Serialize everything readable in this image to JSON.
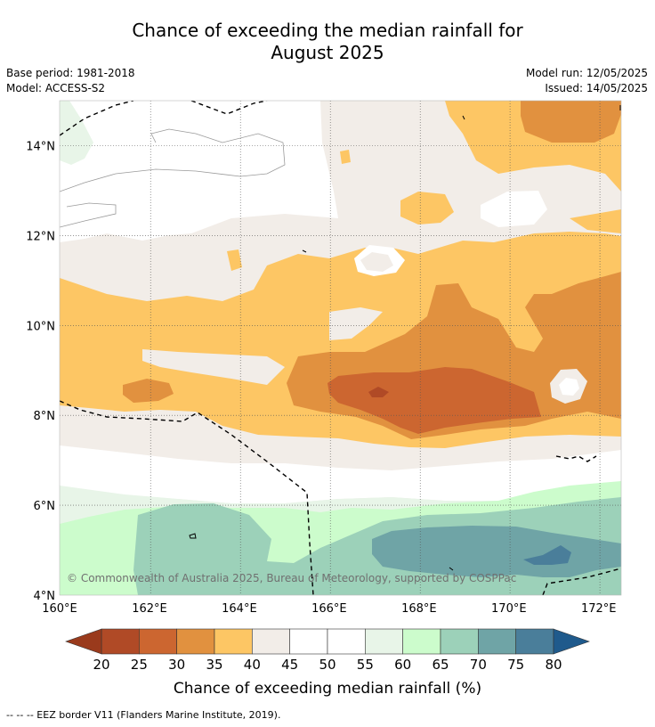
{
  "title_line1": "Chance of exceeding the median rainfall for",
  "title_line2": "August 2025",
  "meta_left": {
    "base_period": "Base period: 1981-2018",
    "model": "Model: ACCESS-S2"
  },
  "meta_right": {
    "model_run": "Model run: 12/05/2025",
    "issued": "Issued: 14/05/2025"
  },
  "map": {
    "lon_range": [
      160,
      172.5
    ],
    "lat_range": [
      4,
      15
    ],
    "lon_ticks": [
      "160°E",
      "162°E",
      "164°E",
      "166°E",
      "168°E",
      "170°E",
      "172°E"
    ],
    "lat_ticks": [
      "4°N",
      "6°N",
      "8°N",
      "10°N",
      "12°N",
      "14°N"
    ],
    "grid": true,
    "copyright": "© Commonwealth of Australia 2025, Bureau of Meteorology, supported by COSPPac"
  },
  "colorbar": {
    "ticks": [
      "20",
      "25",
      "30",
      "35",
      "40",
      "45",
      "50",
      "55",
      "60",
      "65",
      "70",
      "75",
      "80"
    ],
    "colors": [
      "#b04a26",
      "#cc6630",
      "#e1913f",
      "#fdc664",
      "#f2ede8",
      "#ffffff",
      "#ffffff",
      "#e8f5e8",
      "#ccfccc",
      "#9cd1b9",
      "#6fa4a6",
      "#4a7e9a"
    ],
    "low_extend_color": "#9a3a1c",
    "high_extend_color": "#1f5a8c",
    "label": "Chance of exceeding median rainfall (%)"
  },
  "footnote": "--  --  -- EEZ border V11 (Flanders Marine Institute, 2019)."
}
